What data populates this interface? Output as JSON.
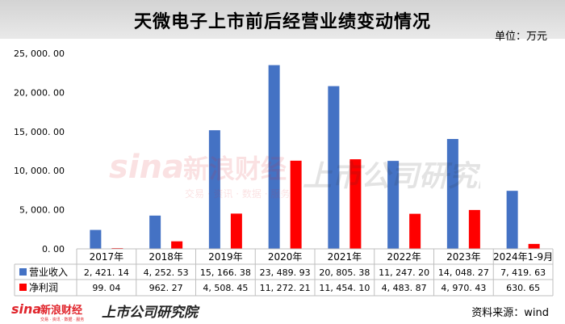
{
  "header": {
    "title": "天微电子上市前后经营业绩变动情况",
    "unit": "单位：万元"
  },
  "footer": {
    "source": "资料来源：wind",
    "logo_sina": "新浪财经",
    "logo_sina_sub": "交易 · 资讯 · 数据 · 服务",
    "logo_research": "上市公司研究院"
  },
  "watermark": {
    "brand": "sina",
    "name": "新浪财经",
    "sub": "交易 · 资讯 · 数据 · 服务",
    "research": "上市公司研究院"
  },
  "chart_data": {
    "type": "bar",
    "categories": [
      "2017年",
      "2018年",
      "2019年",
      "2020年",
      "2021年",
      "2022年",
      "2023年",
      "2024年1-9月"
    ],
    "series": [
      {
        "name": "营业收入",
        "color": "#4472c4",
        "values": [
          2421.14,
          4252.53,
          15166.38,
          23489.93,
          20805.38,
          11247.2,
          14048.27,
          7419.63
        ],
        "labels": [
          "2, 421. 14",
          "4, 252. 53",
          "15, 166. 38",
          "23, 489. 93",
          "20, 805. 38",
          "11, 247. 20",
          "14, 048. 27",
          "7, 419. 63"
        ]
      },
      {
        "name": "净利润",
        "color": "#ff0000",
        "values": [
          99.04,
          962.27,
          4508.45,
          11272.21,
          11454.1,
          4483.87,
          4970.43,
          630.65
        ],
        "labels": [
          "99. 04",
          "962. 27",
          "4, 508. 45",
          "11, 272. 21",
          "11, 454. 10",
          "4, 483. 87",
          "4, 970. 43",
          "630. 65"
        ]
      }
    ],
    "ylim": [
      0,
      25000
    ],
    "yticks": [
      0,
      5000,
      10000,
      15000,
      20000,
      25000
    ],
    "ytick_labels": [
      "0. 00",
      "5, 000. 00",
      "10, 000. 00",
      "15, 000. 00",
      "20, 000. 00",
      "25, 000. 00"
    ],
    "grid": false,
    "legend": "data-table"
  }
}
